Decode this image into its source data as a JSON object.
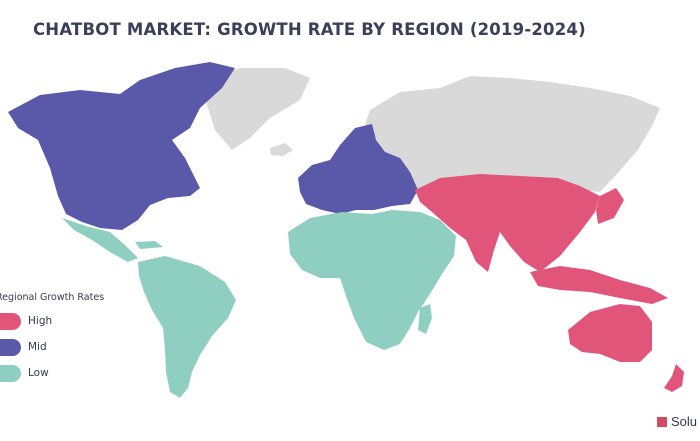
{
  "title": "CHATBOT MARKET: GROWTH RATE BY REGION (2019-2024)",
  "legend": {
    "title": "Regional Growth Rates",
    "items": [
      {
        "label": "High",
        "color": "#e2557a"
      },
      {
        "label": "Mid",
        "color": "#5a58a8"
      },
      {
        "label": "Low",
        "color": "#8fcfc2"
      }
    ]
  },
  "regions": {
    "north_america": {
      "tier": "Mid",
      "color": "#5a58a8"
    },
    "europe": {
      "tier": "Mid",
      "color": "#5a58a8"
    },
    "latin_america": {
      "tier": "Low",
      "color": "#8fcfc2"
    },
    "africa_middle_east": {
      "tier": "Low",
      "color": "#8fcfc2"
    },
    "asia_pacific": {
      "tier": "High",
      "color": "#e2557a"
    },
    "other": {
      "tier": "",
      "color": "#d9d9d9"
    }
  },
  "logo": {
    "text": "Solu"
  }
}
